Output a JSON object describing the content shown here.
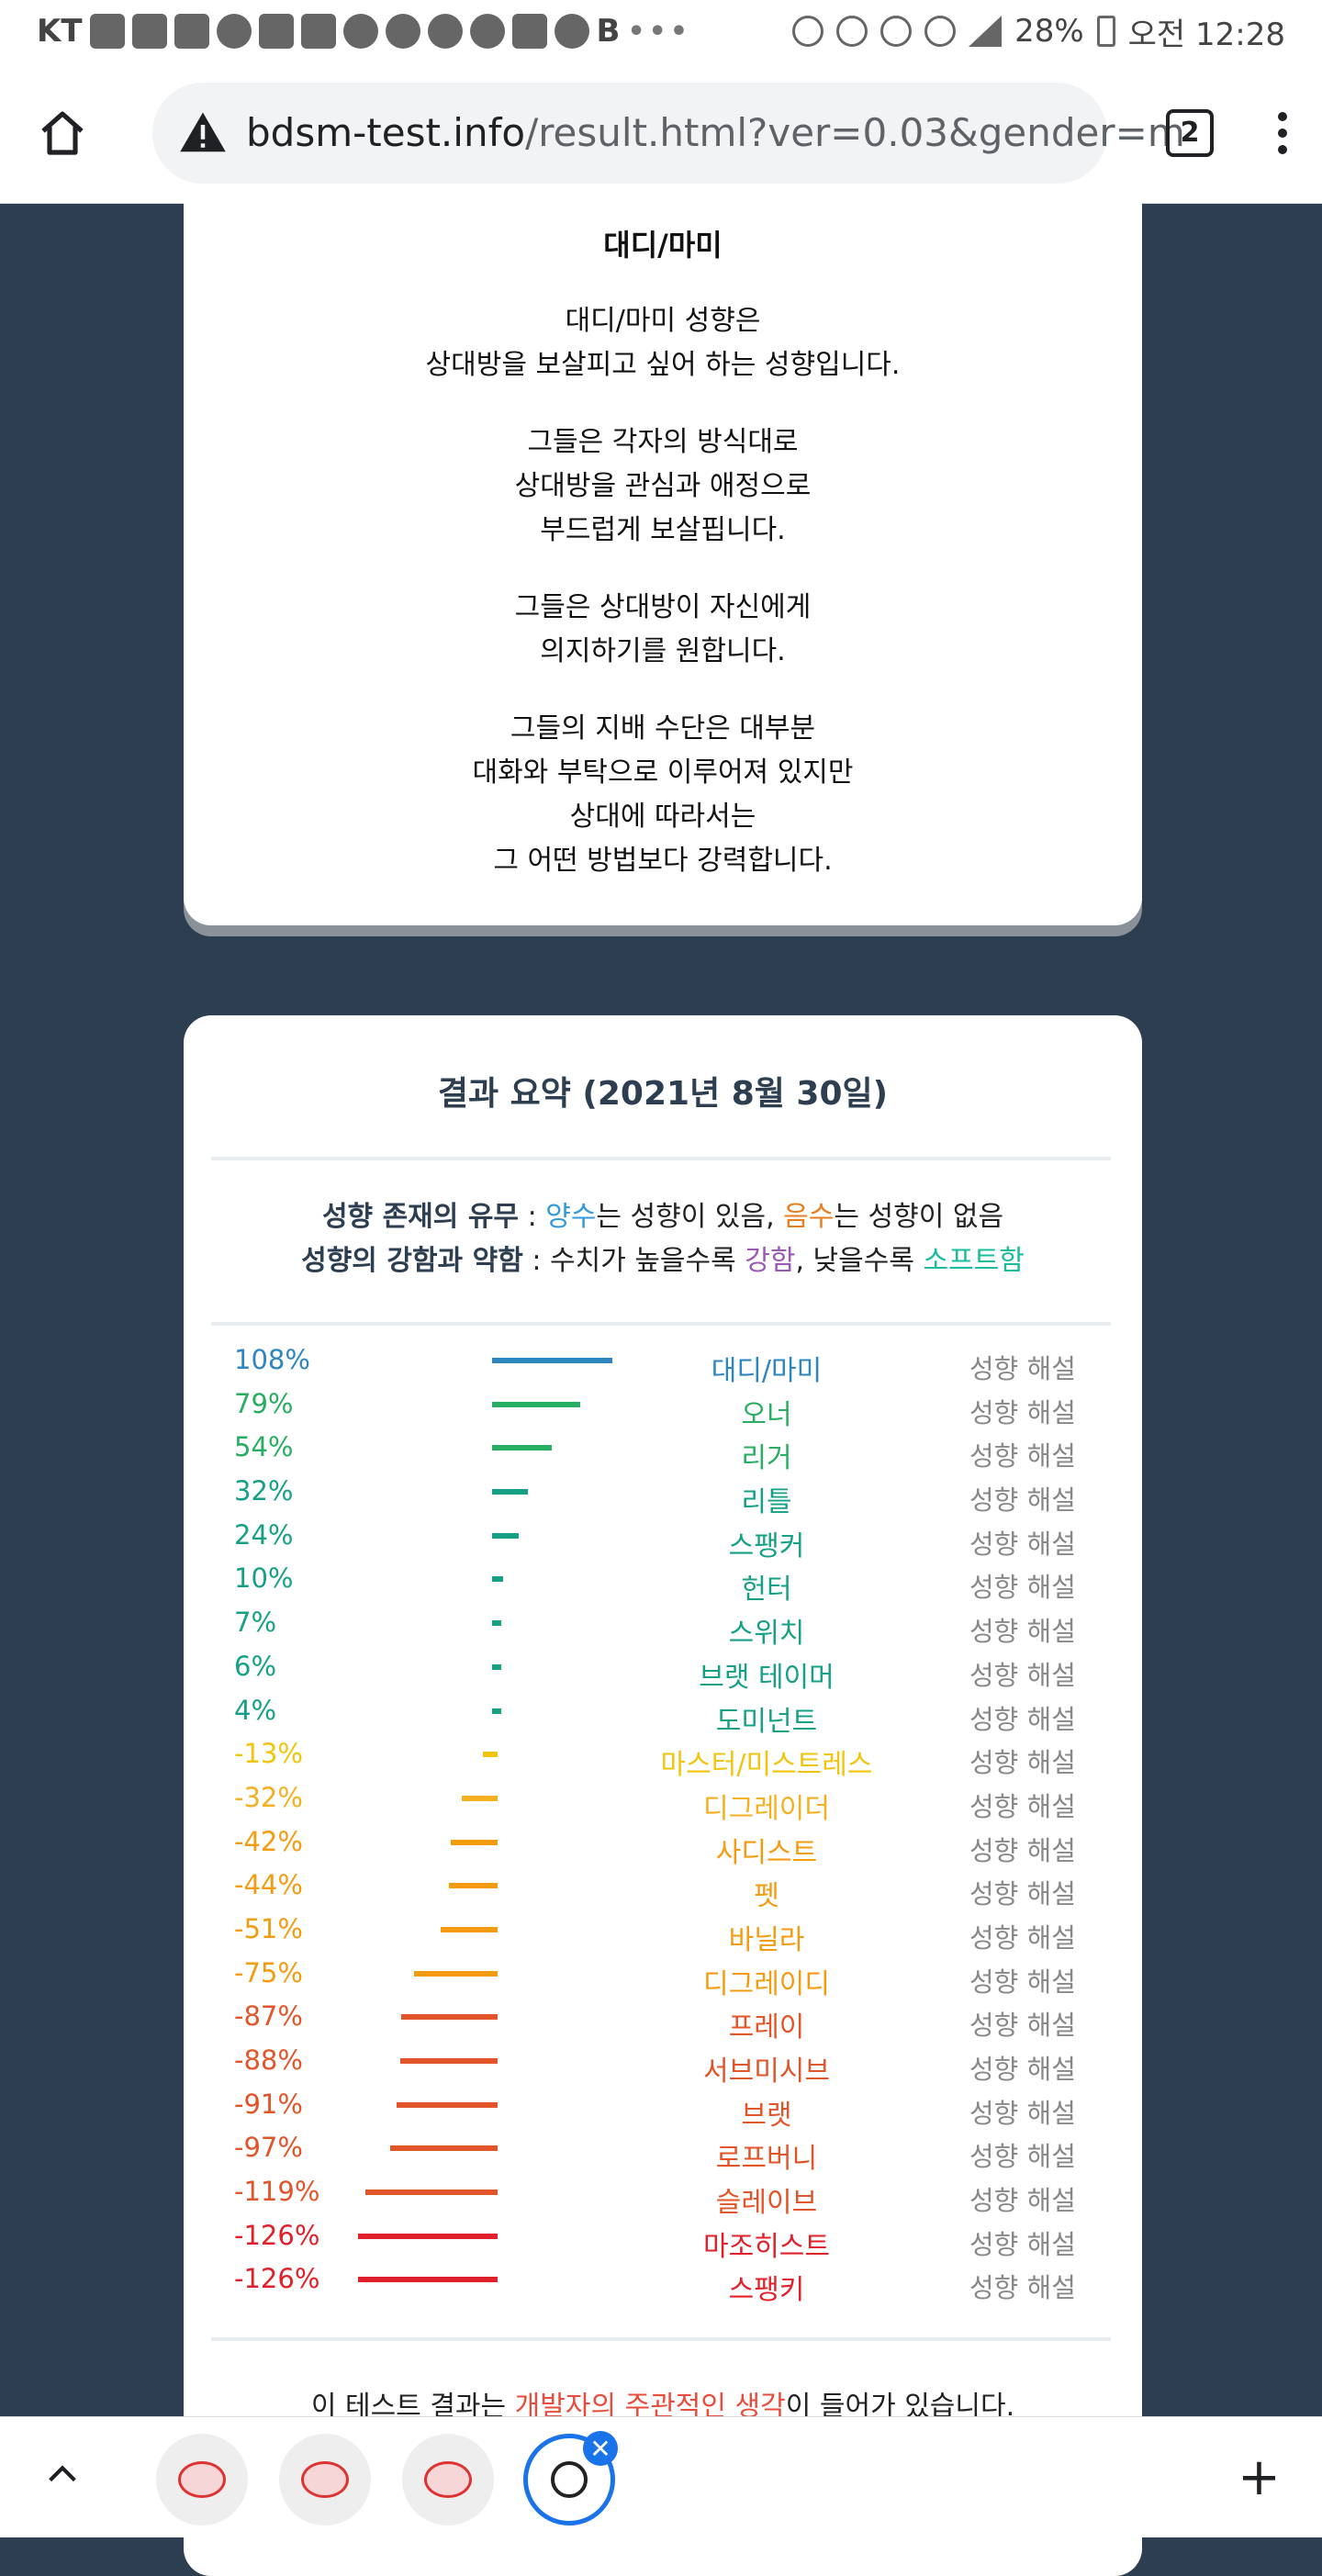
{
  "status_bar": {
    "carrier": "KT",
    "battery": "28%",
    "time": "오전 12:28"
  },
  "browser": {
    "url_host": "bdsm-test.info",
    "url_path": "/result.html?ver=0.03&gender=m",
    "tab_count": "2"
  },
  "description": {
    "title": "대디/마미",
    "paragraphs": [
      [
        "대디/마미 성향은",
        "상대방을 보살피고 싶어 하는 성향입니다."
      ],
      [
        "그들은 각자의 방식대로",
        "상대방을 관심과 애정으로",
        "부드럽게 보살핍니다."
      ],
      [
        "그들은 상대방이 자신에게",
        "의지하기를 원합니다."
      ],
      [
        "그들의 지배 수단은 대부분",
        "대화와 부탁으로 이루어져 있지만",
        "상대에 따라서는",
        "그 어떤 방법보다 강력합니다."
      ]
    ]
  },
  "summary": {
    "title": "결과 요약 (2021년 8월 30일)",
    "legend1": {
      "label": "성향 존재의 유무",
      "sep": " : ",
      "pos": "양수",
      "t1": "는 성향이 있음, ",
      "neg": "음수",
      "t2": "는 성향이 없음"
    },
    "legend2": {
      "label": "성향의 강함과 약함",
      "sep": " : 수치가 높을수록 ",
      "strong": "강함",
      "t1": ", 낮을수록 ",
      "soft": "소프트함"
    },
    "explain_label": "성향 해설",
    "footnote": {
      "pre": "이 테스트 결과는 ",
      "red": "개발자의 주관적인 생각",
      "post": "이 들어가 있습니다."
    }
  },
  "chart_data": {
    "type": "bar",
    "orientation": "horizontal-diverging",
    "unit": "%",
    "items": [
      {
        "label": "대디/마미",
        "value": 108,
        "color": "#2e86c1"
      },
      {
        "label": "오너",
        "value": 79,
        "color": "#27ae60"
      },
      {
        "label": "리거",
        "value": 54,
        "color": "#27ae60"
      },
      {
        "label": "리틀",
        "value": 32,
        "color": "#16a085"
      },
      {
        "label": "스팽커",
        "value": 24,
        "color": "#16a085"
      },
      {
        "label": "헌터",
        "value": 10,
        "color": "#16a085"
      },
      {
        "label": "스위치",
        "value": 7,
        "color": "#16a085"
      },
      {
        "label": "브랫 테이머",
        "value": 6,
        "color": "#16a085"
      },
      {
        "label": "도미넌트",
        "value": 4,
        "color": "#16a085"
      },
      {
        "label": "마스터/미스트레스",
        "value": -13,
        "color": "#f1c40f"
      },
      {
        "label": "디그레이더",
        "value": -32,
        "color": "#f5b021"
      },
      {
        "label": "사디스트",
        "value": -42,
        "color": "#f39c12"
      },
      {
        "label": "펫",
        "value": -44,
        "color": "#f39c12"
      },
      {
        "label": "바닐라",
        "value": -51,
        "color": "#f39c12"
      },
      {
        "label": "디그레이디",
        "value": -75,
        "color": "#f39c12"
      },
      {
        "label": "프레이",
        "value": -87,
        "color": "#e2542a"
      },
      {
        "label": "서브미시브",
        "value": -88,
        "color": "#e2542a"
      },
      {
        "label": "브랫",
        "value": -91,
        "color": "#e2542a"
      },
      {
        "label": "로프버니",
        "value": -97,
        "color": "#e2542a"
      },
      {
        "label": "슬레이브",
        "value": -119,
        "color": "#e2542a"
      },
      {
        "label": "마조히스트",
        "value": -126,
        "color": "#e0202a"
      },
      {
        "label": "스팽키",
        "value": -126,
        "color": "#e0202a"
      }
    ]
  }
}
